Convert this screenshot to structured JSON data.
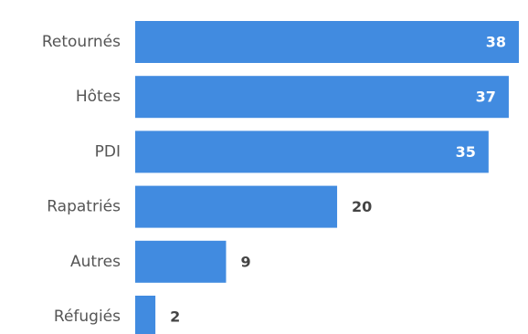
{
  "chart_data": {
    "type": "bar",
    "orientation": "horizontal",
    "title": "",
    "xlabel": "",
    "ylabel": "",
    "categories": [
      "Retournés",
      "Hôtes",
      "PDI",
      "Rapatriés",
      "Autres",
      "Réfugiés"
    ],
    "values": [
      38,
      37,
      35,
      20,
      9,
      2
    ],
    "xlim": [
      0,
      38
    ],
    "grid": false,
    "legend": "none",
    "colors": {
      "bar": "#418be0",
      "label_inside": "#ffffff",
      "label_outside": "#444444",
      "category_text": "#555555"
    }
  }
}
